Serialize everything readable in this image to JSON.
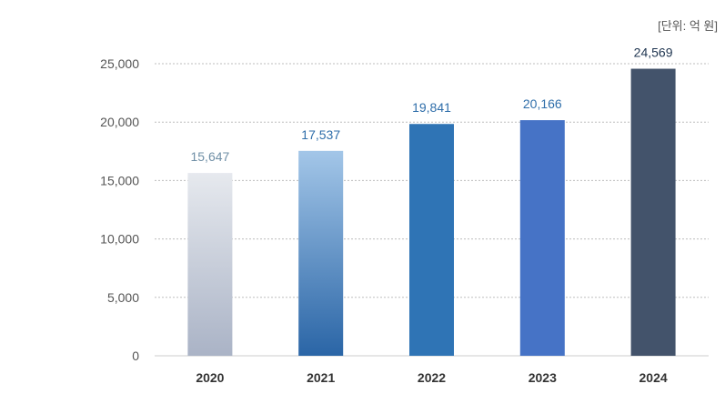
{
  "unit_label": "[단위: 억 원]",
  "chart_data": {
    "type": "bar",
    "categories": [
      "2020",
      "2021",
      "2022",
      "2023",
      "2024"
    ],
    "values": [
      15647,
      17537,
      19841,
      20166,
      24569
    ],
    "value_labels": [
      "15,647",
      "17,537",
      "19,841",
      "20,166",
      "24,569"
    ],
    "yticks": [
      "0",
      "5,000",
      "10,000",
      "15,000",
      "20,000",
      "25,000"
    ],
    "ylim": [
      0,
      25000
    ],
    "grid": true,
    "bar_colors": [
      {
        "top": "#e6e9ee",
        "bottom": "#aab3c6"
      },
      {
        "top": "#a3c6e8",
        "bottom": "#2a65a6"
      },
      {
        "top": "#2f74b5",
        "bottom": "#2f74b5"
      },
      {
        "top": "#4673c6",
        "bottom": "#4673c6"
      },
      {
        "top": "#43536b",
        "bottom": "#43536b"
      }
    ],
    "label_colors": [
      "#6f8fa6",
      "#2f6eaa",
      "#2f6eaa",
      "#2f6eaa",
      "#1f3550"
    ]
  }
}
